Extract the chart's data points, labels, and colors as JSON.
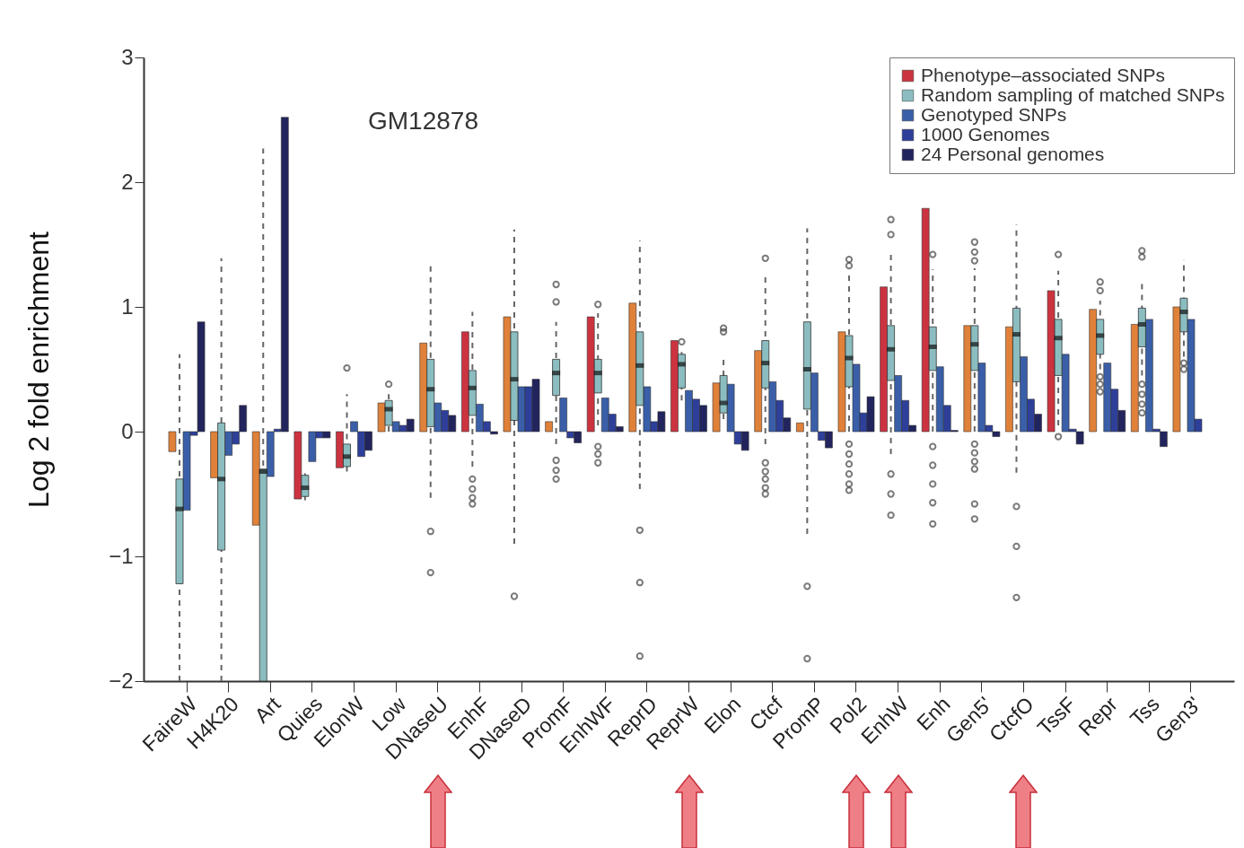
{
  "chart_data": {
    "type": "bar",
    "ylabel": "Log 2 fold enrichment",
    "annotations": [
      "GM12878"
    ],
    "categories": [
      "FaireW",
      "H4K20",
      "Art",
      "Quies",
      "ElonW",
      "Low",
      "DNaseU",
      "EnhF",
      "DNaseD",
      "PromF",
      "EnhWF",
      "ReprD",
      "ReprW",
      "Elon",
      "Ctcf",
      "PromP",
      "Pol2",
      "EnhW",
      "Enh",
      "Gen5'",
      "CtcfO",
      "TssF",
      "Repr",
      "Tss",
      "Gen3'"
    ],
    "ylim": [
      -2,
      3
    ],
    "yticks": [
      -2,
      -1,
      0,
      1,
      2,
      3
    ],
    "grid": false,
    "legend": "top right",
    "series": [
      {
        "name": "Phenotype–associated SNPs",
        "type": "bar",
        "color": "#cc3340",
        "colors": [
          "#e0813a",
          "#e0813a",
          "#e0813a",
          "#cc3340",
          "#cc3340",
          "#e0813a",
          "#e0813a",
          "#cc3340",
          "#e0813a",
          "#e0813a",
          "#cc3340",
          "#e0813a",
          "#cc3340",
          "#e0813a",
          "#e0813a",
          "#e0813a",
          "#e0813a",
          "#cc3340",
          "#cc3340",
          "#e0813a",
          "#e0813a",
          "#cc3340",
          "#e0813a",
          "#e0813a",
          "#e0813a"
        ],
        "values": [
          -0.16,
          -0.37,
          -0.75,
          -0.54,
          -0.29,
          0.23,
          0.71,
          0.8,
          0.92,
          0.08,
          0.92,
          1.03,
          0.73,
          0.39,
          0.65,
          0.07,
          0.8,
          1.16,
          1.79,
          0.85,
          0.84,
          1.13,
          0.98,
          0.86,
          1.0
        ]
      },
      {
        "name": "Random sampling of matched SNPs",
        "type": "box",
        "color": "#8bbdc0",
        "boxes": [
          {
            "low": -2,
            "q1": -1.22,
            "median": -0.62,
            "q3": -0.38,
            "high": 0.62
          },
          {
            "low": -2,
            "q1": -0.95,
            "median": -0.38,
            "q3": 0.07,
            "high": 1.39
          },
          {
            "low": -2,
            "q1": -2,
            "median": -0.32,
            "q3": -0.3,
            "high": 2.27
          },
          {
            "low": -0.55,
            "q1": -0.52,
            "median": -0.45,
            "q3": -0.35,
            "high": -0.3
          },
          {
            "low": -0.32,
            "q1": -0.28,
            "median": -0.2,
            "q3": -0.1,
            "high": 0.3,
            "outliers": [
              0.51
            ]
          },
          {
            "low": 0,
            "q1": 0.05,
            "median": 0.18,
            "q3": 0.25,
            "high": 0.3,
            "outliers": [
              0.38
            ]
          },
          {
            "low": -0.53,
            "q1": 0.04,
            "median": 0.34,
            "q3": 0.58,
            "high": 1.34,
            "outliers": [
              -0.8,
              -1.13
            ]
          },
          {
            "low": -0.28,
            "q1": 0.13,
            "median": 0.35,
            "q3": 0.49,
            "high": 0.96,
            "outliers": [
              -0.38,
              -0.46,
              -0.53,
              -0.58
            ]
          },
          {
            "low": -0.9,
            "q1": 0.09,
            "median": 0.42,
            "q3": 0.8,
            "high": 1.62,
            "outliers": [
              -1.32
            ]
          },
          {
            "low": -0.1,
            "q1": 0.29,
            "median": 0.47,
            "q3": 0.58,
            "high": 0.88,
            "outliers": [
              1.18,
              1.04,
              -0.23,
              -0.31,
              -0.38
            ]
          },
          {
            "low": 0.05,
            "q1": 0.31,
            "median": 0.47,
            "q3": 0.58,
            "high": 0.95,
            "outliers": [
              1.02,
              -0.12,
              -0.18,
              -0.25
            ]
          },
          {
            "low": -0.46,
            "q1": 0.21,
            "median": 0.53,
            "q3": 0.8,
            "high": 1.53,
            "outliers": [
              -0.79,
              -1.21,
              -1.8
            ]
          },
          {
            "low": 0.25,
            "q1": 0.35,
            "median": 0.54,
            "q3": 0.62,
            "high": 0.68,
            "outliers": [
              0.72
            ]
          },
          {
            "low": 0.1,
            "q1": 0.15,
            "median": 0.23,
            "q3": 0.45,
            "high": 0.6,
            "outliers": [
              0.83,
              0.8
            ]
          },
          {
            "low": -0.1,
            "q1": 0.35,
            "median": 0.55,
            "q3": 0.73,
            "high": 1.26,
            "outliers": [
              1.39,
              -0.25,
              -0.32,
              -0.38,
              -0.45,
              -0.5
            ]
          },
          {
            "low": -0.82,
            "q1": 0.18,
            "median": 0.5,
            "q3": 0.88,
            "high": 1.63,
            "outliers": [
              -1.24,
              -1.82
            ]
          },
          {
            "low": 0,
            "q1": 0.36,
            "median": 0.59,
            "q3": 0.77,
            "high": 1.26,
            "outliers": [
              1.38,
              1.33,
              -0.1,
              -0.18,
              -0.26,
              -0.34,
              -0.42,
              -0.47
            ]
          },
          {
            "low": -0.18,
            "q1": 0.41,
            "median": 0.66,
            "q3": 0.85,
            "high": 1.45,
            "outliers": [
              1.7,
              1.58,
              -0.34,
              -0.5,
              -0.67
            ]
          },
          {
            "low": 0,
            "q1": 0.49,
            "median": 0.68,
            "q3": 0.84,
            "high": 1.3,
            "outliers": [
              1.42,
              -0.12,
              -0.27,
              -0.42,
              -0.57,
              -0.74
            ]
          },
          {
            "low": 0,
            "q1": 0.49,
            "median": 0.7,
            "q3": 0.85,
            "high": 1.31,
            "outliers": [
              1.52,
              1.44,
              1.37,
              -0.1,
              -0.17,
              -0.24,
              -0.3,
              -0.58,
              -0.7
            ]
          },
          {
            "low": -0.33,
            "q1": 0.4,
            "median": 0.78,
            "q3": 0.99,
            "high": 1.66,
            "outliers": [
              -0.6,
              -0.92,
              -1.33
            ]
          },
          {
            "low": 0.05,
            "q1": 0.45,
            "median": 0.75,
            "q3": 0.9,
            "high": 1.29,
            "outliers": [
              1.42,
              -0.04
            ]
          },
          {
            "low": 0.5,
            "q1": 0.62,
            "median": 0.77,
            "q3": 0.9,
            "high": 1.05,
            "outliers": [
              1.13,
              1.2,
              0.44,
              0.38,
              0.32
            ]
          },
          {
            "low": 0.45,
            "q1": 0.68,
            "median": 0.86,
            "q3": 0.99,
            "high": 1.2,
            "outliers": [
              1.45,
              1.4,
              0.38,
              0.3,
              0.22,
              0.15
            ]
          },
          {
            "low": 0.6,
            "q1": 0.8,
            "median": 0.96,
            "q3": 1.07,
            "high": 1.38,
            "outliers": [
              0.55,
              0.5
            ]
          }
        ]
      },
      {
        "name": "Genotyped SNPs",
        "type": "bar",
        "color": "#3a5fa8",
        "values": [
          -0.63,
          -0.19,
          -0.36,
          -0.24,
          0.08,
          0.08,
          0.23,
          0.22,
          0.36,
          0.27,
          0.27,
          0.36,
          0.33,
          0.38,
          0.4,
          0.47,
          0.54,
          0.45,
          0.52,
          0.55,
          0.6,
          0.62,
          0.55,
          0.9,
          0.9
        ]
      },
      {
        "name": "1000 Genomes",
        "type": "bar",
        "color": "#2e3f9a",
        "values": [
          -0.03,
          -0.1,
          0.02,
          -0.05,
          -0.2,
          0.05,
          0.17,
          0.08,
          0.36,
          -0.05,
          0.14,
          0.08,
          0.26,
          -0.1,
          0.25,
          -0.07,
          0.15,
          0.25,
          0.21,
          0.05,
          0.26,
          0.02,
          0.34,
          0.02,
          0.1
        ]
      },
      {
        "name": "24 Personal genomes",
        "type": "bar",
        "color": "#22245e",
        "values": [
          0.88,
          0.21,
          2.52,
          -0.05,
          -0.15,
          0.1,
          0.13,
          -0.02,
          0.42,
          -0.09,
          0.04,
          0.16,
          0.21,
          -0.15,
          0.11,
          -0.13,
          0.28,
          0.05,
          0.01,
          -0.04,
          0.14,
          -0.1,
          0.17,
          -0.12,
          null
        ]
      }
    ]
  }
}
